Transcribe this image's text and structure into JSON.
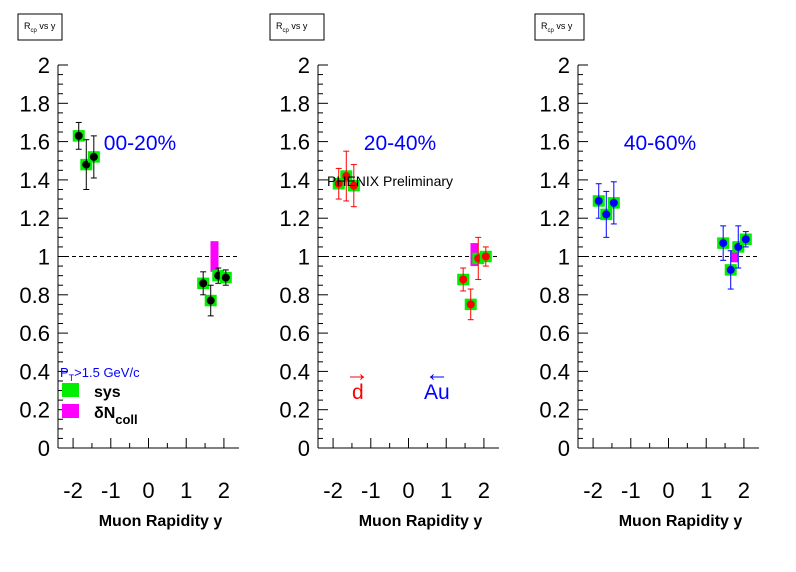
{
  "figure": {
    "ylim": [
      0,
      2
    ],
    "xlim": [
      -2.4,
      2.4
    ],
    "y_ticks": [
      "0",
      "0.2",
      "0.4",
      "0.6",
      "0.8",
      "1",
      "1.2",
      "1.4",
      "1.6",
      "1.8",
      "2"
    ],
    "x_ticks": [
      "-2",
      "-1",
      "0",
      "1",
      "2"
    ],
    "x_label": "Muon Rapidity y",
    "reference_line": 1,
    "colors": {
      "sys": "#00ee00",
      "ncoll": "#ff00ff"
    }
  },
  "preliminary_label": "PHENIX Preliminary",
  "legend": {
    "pt_label": "P",
    "pt_sub": "T",
    "pt_rest": ">1.5 GeV/c",
    "sys_label": "sys",
    "ncoll_prefix": "δN",
    "ncoll_sub": "coll"
  },
  "arrows": {
    "d_symbol": "→",
    "d_label": "d",
    "d_color": "#ff0000",
    "au_symbol": "←",
    "au_label": "Au",
    "au_color": "#0000ff"
  },
  "chart_data": [
    {
      "type": "scatter",
      "title_box": "R_cp vs y",
      "title_main": "R",
      "title_sub": "cp",
      "title_rest": " vs y",
      "centrality": "00-20%",
      "marker_color": "#000000",
      "error_color": "#000000",
      "points": [
        {
          "x": -1.85,
          "y": 1.63,
          "err": 0.07,
          "sys": 0.03
        },
        {
          "x": -1.65,
          "y": 1.48,
          "err": 0.13,
          "sys": 0.03
        },
        {
          "x": -1.45,
          "y": 1.52,
          "err": 0.11,
          "sys": 0.03
        },
        {
          "x": 1.45,
          "y": 0.86,
          "err": 0.06,
          "sys": 0.03
        },
        {
          "x": 1.65,
          "y": 0.77,
          "err": 0.08,
          "sys": 0.03
        },
        {
          "x": 1.85,
          "y": 0.9,
          "err": 0.04,
          "sys": 0.03
        },
        {
          "x": 2.05,
          "y": 0.89,
          "err": 0.04,
          "sys": 0.03
        }
      ],
      "ncoll_band": {
        "x": 1.75,
        "low": 0.92,
        "high": 1.08
      }
    },
    {
      "type": "scatter",
      "title_box": "R_cp vs y",
      "title_main": "R",
      "title_sub": "cp",
      "title_rest": " vs y",
      "centrality": "20-40%",
      "marker_color": "#ff0000",
      "error_color": "#ff0000",
      "points": [
        {
          "x": -1.85,
          "y": 1.38,
          "err": 0.08,
          "sys": 0.03
        },
        {
          "x": -1.65,
          "y": 1.42,
          "err": 0.13,
          "sys": 0.03
        },
        {
          "x": -1.45,
          "y": 1.37,
          "err": 0.11,
          "sys": 0.03
        },
        {
          "x": 1.45,
          "y": 0.88,
          "err": 0.06,
          "sys": 0.03
        },
        {
          "x": 1.65,
          "y": 0.75,
          "err": 0.08,
          "sys": 0.03
        },
        {
          "x": 1.85,
          "y": 0.99,
          "err": 0.11,
          "sys": 0.03
        },
        {
          "x": 2.05,
          "y": 1.0,
          "err": 0.05,
          "sys": 0.03
        }
      ],
      "ncoll_band": {
        "x": 1.75,
        "low": 0.95,
        "high": 1.07
      }
    },
    {
      "type": "scatter",
      "title_box": "R_cp vs y",
      "title_main": "R",
      "title_sub": "cp",
      "title_rest": " vs y",
      "centrality": "40-60%",
      "marker_color": "#0000ff",
      "error_color": "#0000ff",
      "points": [
        {
          "x": -1.85,
          "y": 1.29,
          "err": 0.09,
          "sys": 0.03
        },
        {
          "x": -1.65,
          "y": 1.22,
          "err": 0.12,
          "sys": 0.03
        },
        {
          "x": -1.45,
          "y": 1.28,
          "err": 0.11,
          "sys": 0.03
        },
        {
          "x": 1.45,
          "y": 1.07,
          "err": 0.09,
          "sys": 0.03
        },
        {
          "x": 1.65,
          "y": 0.93,
          "err": 0.1,
          "sys": 0.03
        },
        {
          "x": 1.85,
          "y": 1.05,
          "err": 0.11,
          "sys": 0.03
        },
        {
          "x": 2.05,
          "y": 1.09,
          "err": 0.04,
          "sys": 0.03
        }
      ],
      "ncoll_band": {
        "x": 1.75,
        "low": 0.97,
        "high": 1.03
      }
    }
  ]
}
